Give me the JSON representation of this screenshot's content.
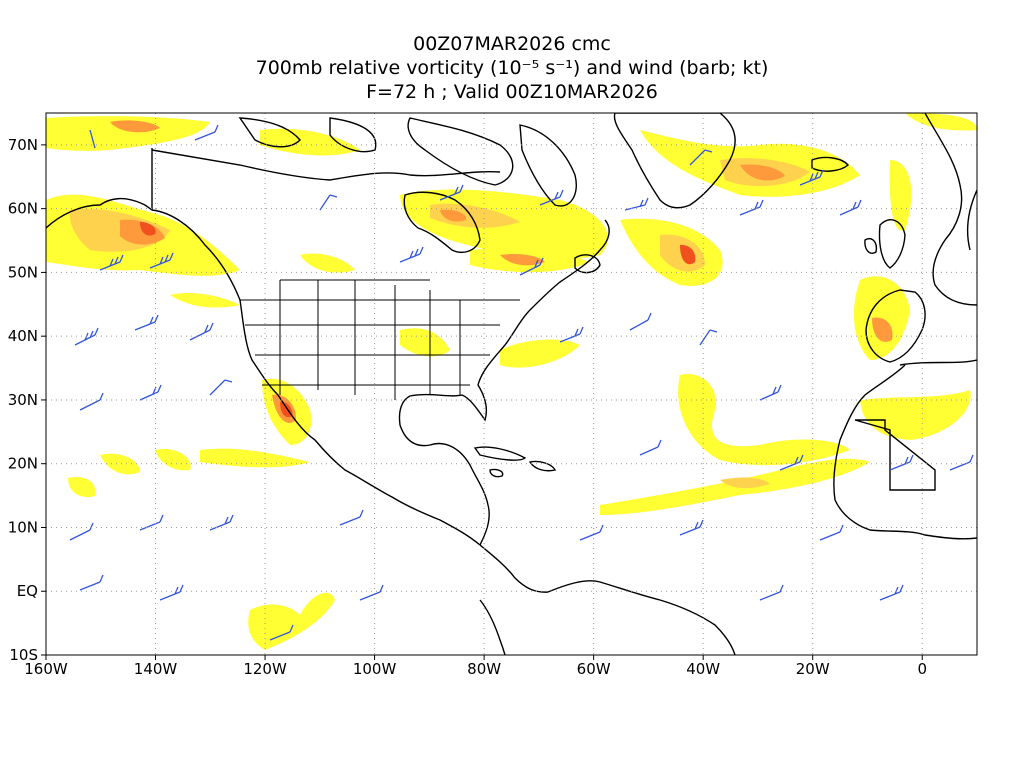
{
  "title": {
    "line1": "00Z07MAR2026 cmc",
    "line2": "700mb relative vorticity (10⁻⁵ s⁻¹) and wind (barb; kt)",
    "line3": "F=72 h ; Valid 00Z10MAR2026"
  },
  "axes": {
    "lon_ticks": [
      "160W",
      "140W",
      "120W",
      "100W",
      "80W",
      "60W",
      "40W",
      "20W",
      "0"
    ],
    "lat_ticks": [
      "10S",
      "EQ",
      "10N",
      "20N",
      "30N",
      "40N",
      "50N",
      "60N",
      "70N"
    ],
    "lon_range": [
      -160,
      10
    ],
    "lat_range": [
      -10,
      75
    ],
    "grid": "dotted"
  },
  "field": {
    "name": "relative vorticity",
    "shading_colors": [
      "#ffff33",
      "#ffd24d",
      "#ff9a3c",
      "#f0501e"
    ],
    "barb_color": "#3355dd",
    "coastline_color": "#000000"
  }
}
